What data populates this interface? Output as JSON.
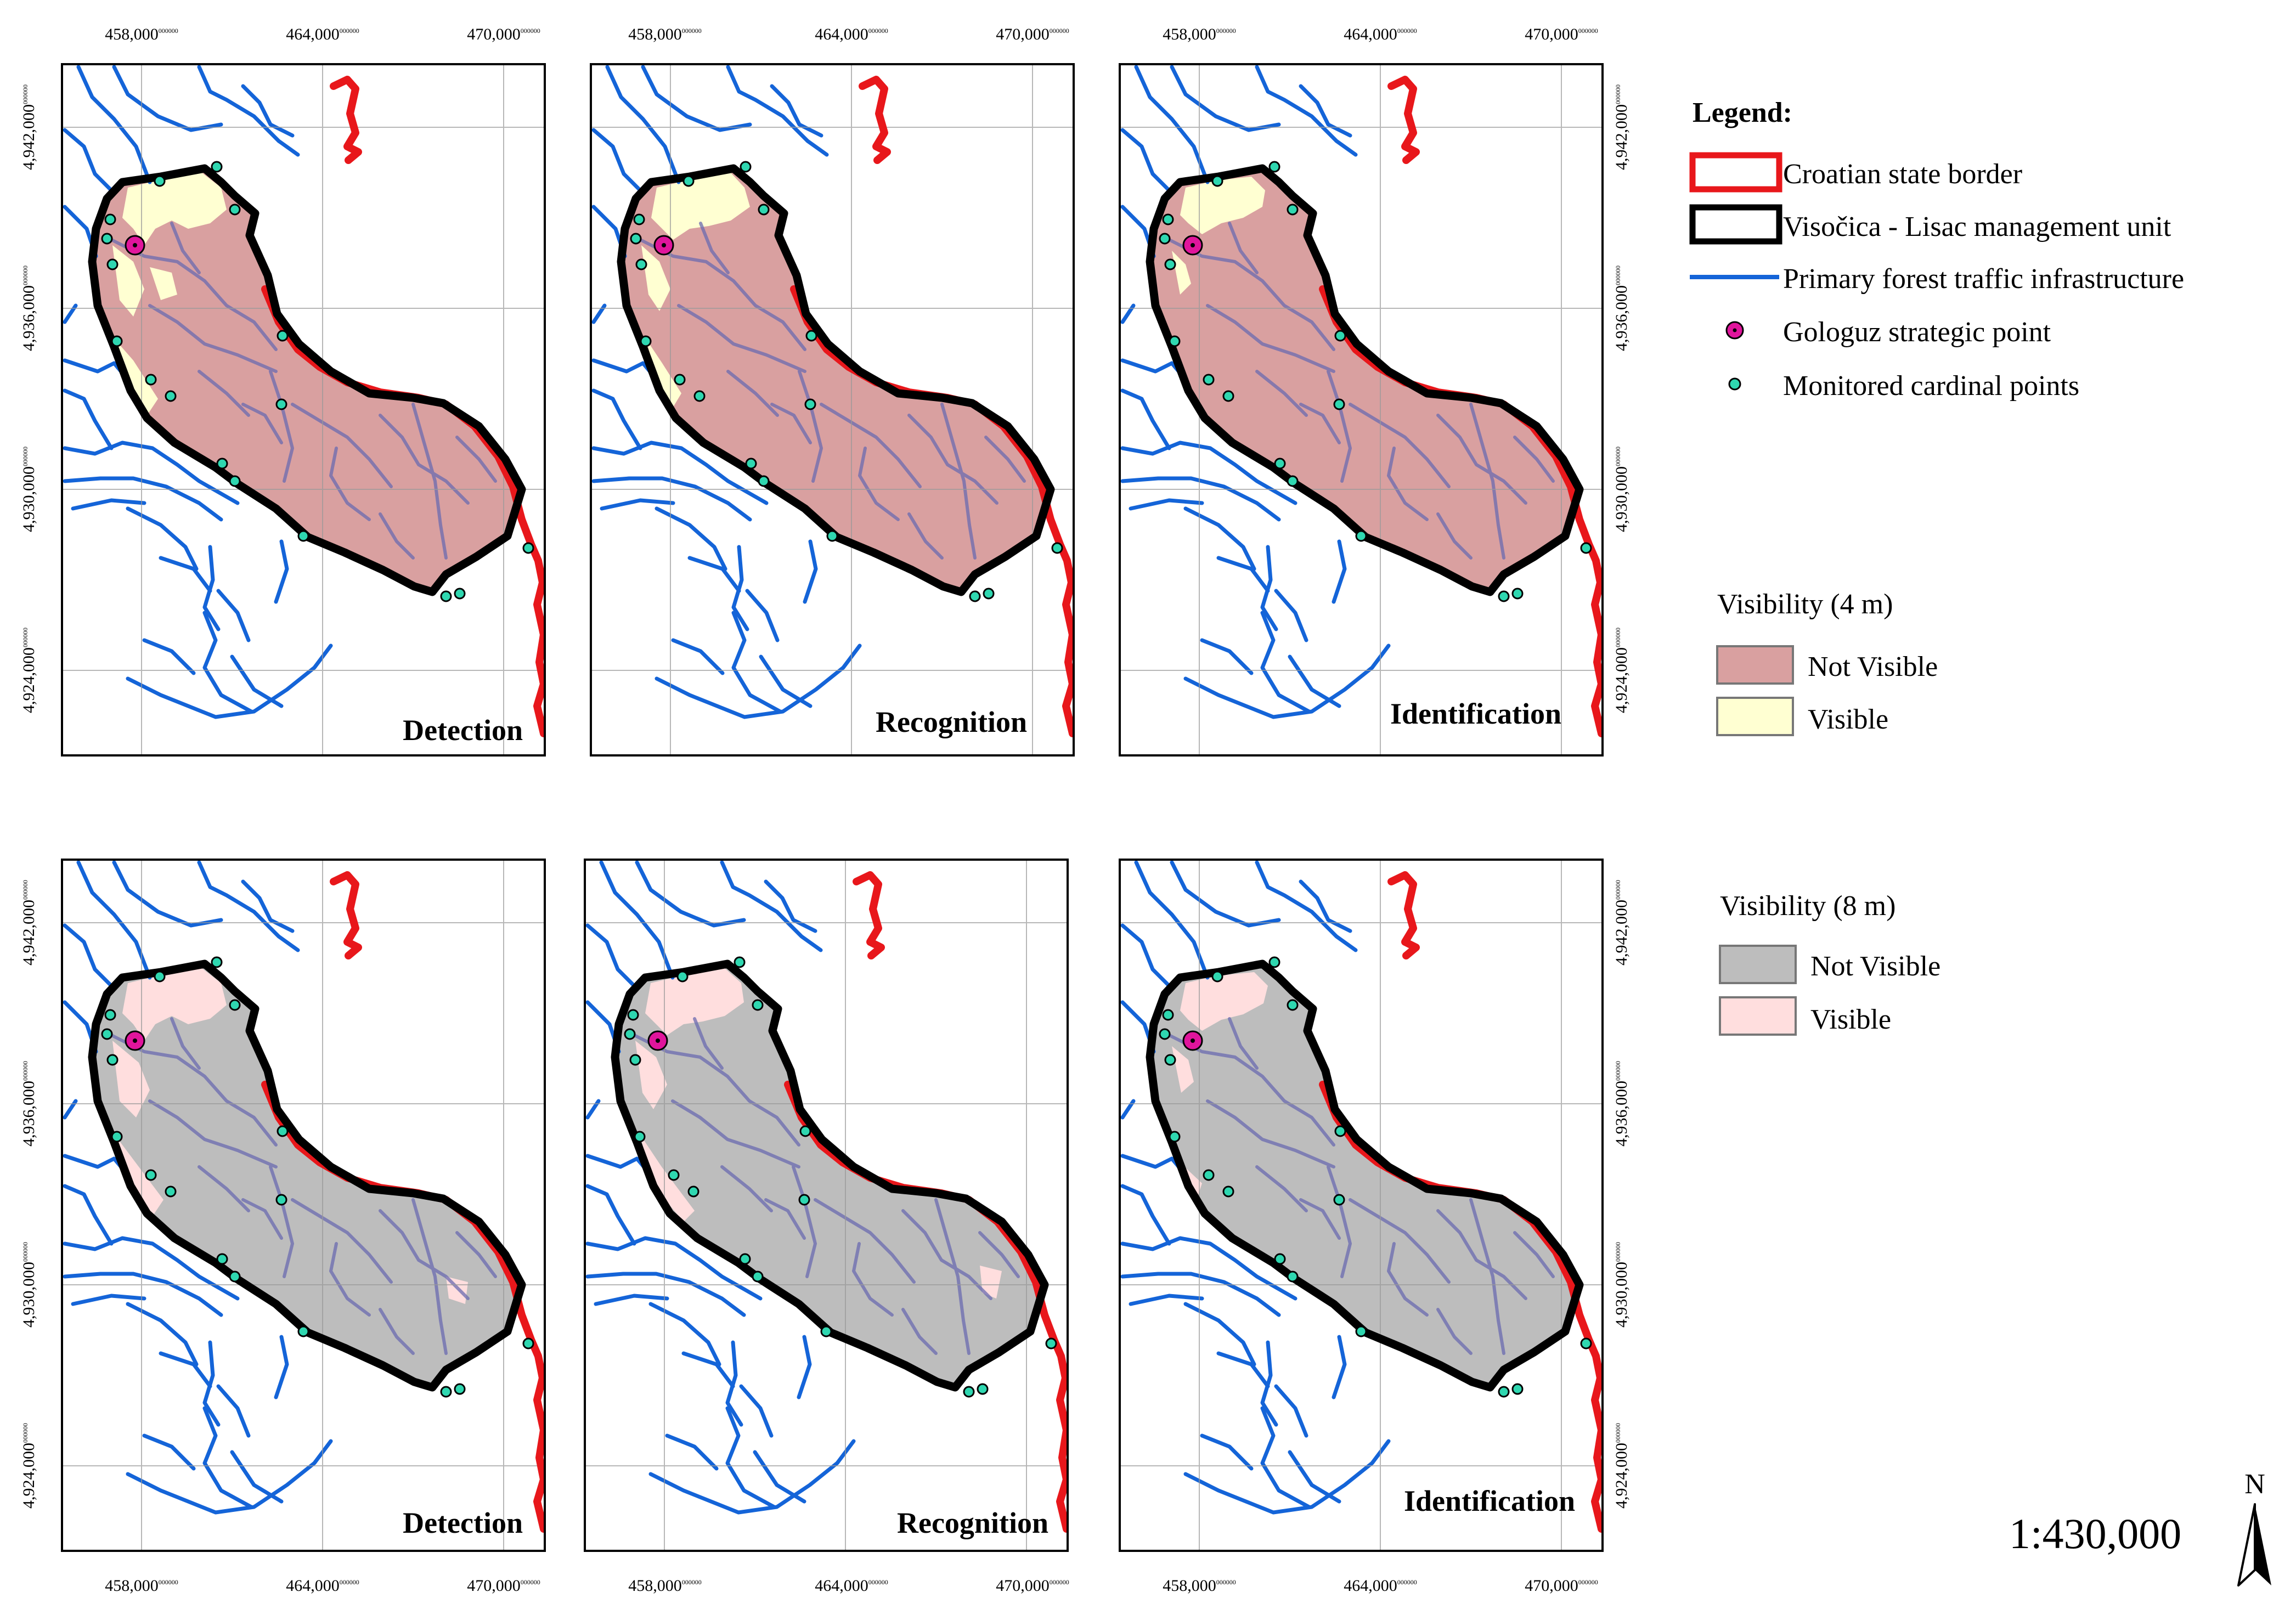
{
  "panels": [
    {
      "label": "Detection",
      "row": "4 m"
    },
    {
      "label": "Recognition",
      "row": "4 m"
    },
    {
      "label": "Identification",
      "row": "4 m"
    },
    {
      "label": "Detection",
      "row": "8 m"
    },
    {
      "label": "Recognition",
      "row": "8 m"
    },
    {
      "label": "Identification",
      "row": "8 m"
    }
  ],
  "axes": {
    "x_ticks": [
      "458,000",
      "464,000",
      "470,000"
    ],
    "y_ticks": [
      "4,942,000",
      "4,936,000",
      "4,930,000",
      "4,924,000"
    ],
    "tick_superscript": "000000"
  },
  "legend": {
    "title": "Legend:",
    "items": [
      {
        "label": "Croatian state border",
        "symbol": "red-box-icon",
        "color": "#e8171b"
      },
      {
        "label": "Visočica - Lisac management unit",
        "symbol": "black-box-icon",
        "color": "#000000"
      },
      {
        "label": "Primary forest traffic infrastructure",
        "symbol": "blue-line-icon",
        "color": "#1464d8"
      },
      {
        "label": "Gologuz strategic point",
        "symbol": "magenta-dot-icon",
        "color": "#e0159c"
      },
      {
        "label": "Monitored cardinal points",
        "symbol": "teal-dot-icon",
        "color": "#2fd7b0"
      }
    ]
  },
  "visibility_4m": {
    "title": "Visibility (4 m)",
    "items": [
      {
        "label": "Not Visible",
        "color": "#d9a0a0"
      },
      {
        "label": "Visible",
        "color": "#ffffd2"
      }
    ]
  },
  "visibility_8m": {
    "title": "Visibility (8 m)",
    "items": [
      {
        "label": "Not Visible",
        "color": "#bdbdbd"
      },
      {
        "label": "Visible",
        "color": "#ffdede"
      }
    ]
  },
  "scale": "1:430,000",
  "north": "N"
}
